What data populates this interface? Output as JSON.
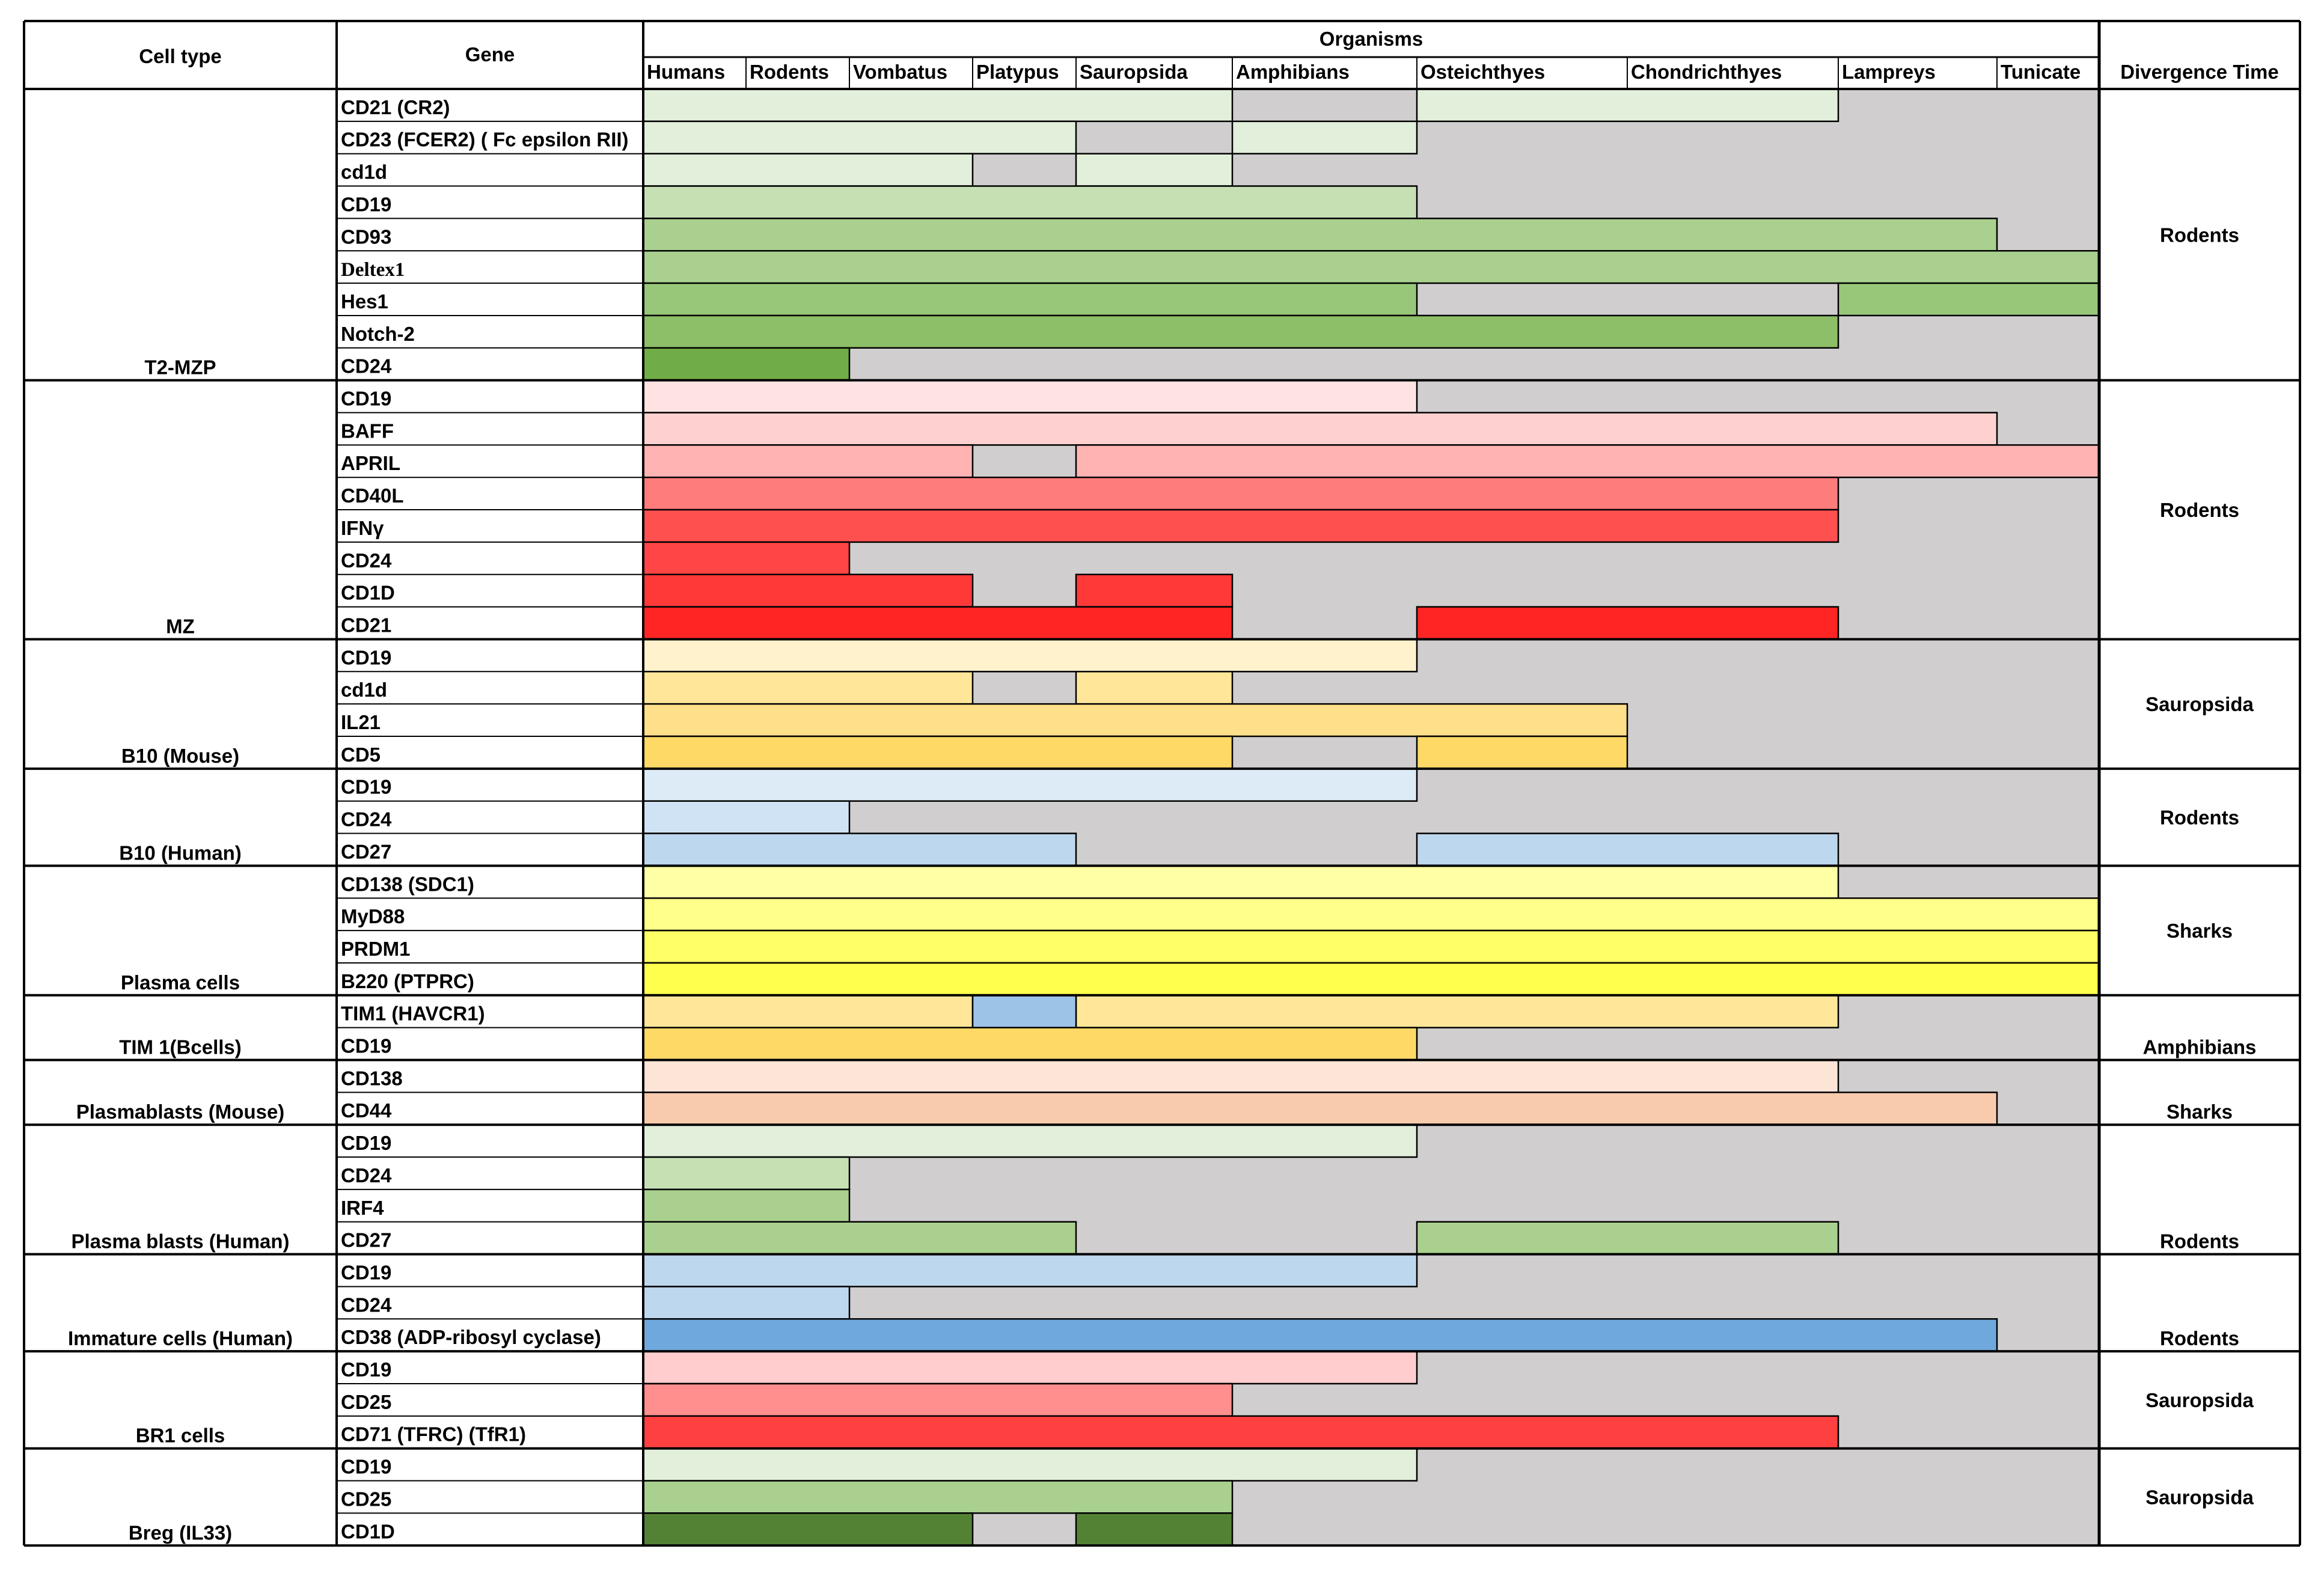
{
  "chart_data": {
    "type": "table",
    "headers": {
      "cell_type": "Cell type",
      "gene": "Gene",
      "organisms": "Organisms",
      "divergence": "Divergence Time"
    },
    "organisms": [
      "Humans",
      "Rodents",
      "Vombatus",
      "Platypus",
      "Sauropsida",
      "Amphibians",
      "Osteichthyes",
      "Chondrichthyes",
      "Lampreys",
      "Tunicate"
    ],
    "absent_color": "#d0cece",
    "groups": [
      {
        "cell_type": "T2-MZP",
        "divergence": "Rodents",
        "rows": [
          {
            "gene": "CD21 (CR2)",
            "color": "#e2efda",
            "segments": [
              [
                0,
                5
              ],
              [
                6,
                8
              ]
            ]
          },
          {
            "gene": "CD23 (FCER2) ( Fc epsilon RII)",
            "color": "#e2efda",
            "segments": [
              [
                0,
                4
              ],
              [
                5,
                6
              ]
            ]
          },
          {
            "gene": "cd1d",
            "color": "#e2efda",
            "segments": [
              [
                0,
                3
              ],
              [
                4,
                5
              ]
            ]
          },
          {
            "gene": "CD19",
            "color": "#c6e0b4",
            "segments": [
              [
                0,
                6
              ]
            ]
          },
          {
            "gene": "CD93",
            "color": "#a9d08e",
            "segments": [
              [
                0,
                9
              ]
            ]
          },
          {
            "gene": "Deltex1",
            "color": "#a9d08e",
            "segments": [
              [
                0,
                10
              ]
            ],
            "serif": true
          },
          {
            "gene": "Hes1",
            "color": "#98c77a",
            "segments": [
              [
                0,
                6
              ],
              [
                8,
                10
              ]
            ]
          },
          {
            "gene": "Notch-2",
            "color": "#8cbf67",
            "segments": [
              [
                0,
                8
              ]
            ]
          },
          {
            "gene": "CD24",
            "color": "#70ad47",
            "segments": [
              [
                0,
                2
              ]
            ]
          }
        ]
      },
      {
        "cell_type": "MZ",
        "divergence": "Rodents",
        "rows": [
          {
            "gene": "CD19",
            "color": "#ffe3e3",
            "segments": [
              [
                0,
                6
              ]
            ]
          },
          {
            "gene": "BAFF",
            "color": "#ffd0d0",
            "segments": [
              [
                0,
                9
              ]
            ]
          },
          {
            "gene": "APRIL",
            "color": "#ffb3b3",
            "segments": [
              [
                0,
                3
              ],
              [
                4,
                10
              ]
            ]
          },
          {
            "gene": "CD40L",
            "color": "#ff7c7c",
            "segments": [
              [
                0,
                8
              ]
            ]
          },
          {
            "gene": "IFNγ",
            "color": "#ff5050",
            "segments": [
              [
                0,
                8
              ]
            ]
          },
          {
            "gene": "CD24",
            "color": "#ff4545",
            "segments": [
              [
                0,
                2
              ]
            ]
          },
          {
            "gene": "CD1D",
            "color": "#ff3838",
            "segments": [
              [
                0,
                3
              ],
              [
                4,
                5
              ]
            ]
          },
          {
            "gene": "CD21",
            "color": "#ff2525",
            "segments": [
              [
                0,
                5
              ],
              [
                6,
                8
              ]
            ]
          }
        ]
      },
      {
        "cell_type": "B10 (Mouse)",
        "divergence": "Sauropsida",
        "rows": [
          {
            "gene": "CD19",
            "color": "#fff2cc",
            "segments": [
              [
                0,
                6
              ]
            ]
          },
          {
            "gene": "cd1d",
            "color": "#ffe699",
            "segments": [
              [
                0,
                3
              ],
              [
                4,
                5
              ]
            ]
          },
          {
            "gene": "IL21",
            "color": "#ffe08a",
            "segments": [
              [
                0,
                7
              ]
            ]
          },
          {
            "gene": "CD5",
            "color": "#ffd966",
            "segments": [
              [
                0,
                5
              ],
              [
                6,
                7
              ]
            ]
          }
        ]
      },
      {
        "cell_type": "B10 (Human)",
        "divergence": "Rodents",
        "rows": [
          {
            "gene": "CD19",
            "color": "#ddebf7",
            "segments": [
              [
                0,
                6
              ]
            ]
          },
          {
            "gene": "CD24",
            "color": "#cfe3f5",
            "segments": [
              [
                0,
                2
              ]
            ]
          },
          {
            "gene": "CD27",
            "color": "#bdd7ee",
            "segments": [
              [
                0,
                4
              ],
              [
                6,
                8
              ]
            ]
          }
        ]
      },
      {
        "cell_type": "Plasma cells",
        "divergence": "Sharks",
        "rows": [
          {
            "gene": "CD138 (SDC1)",
            "color": "#ffffa5",
            "segments": [
              [
                0,
                8
              ]
            ]
          },
          {
            "gene": "MyD88",
            "color": "#ffff8a",
            "segments": [
              [
                0,
                10
              ]
            ]
          },
          {
            "gene": "PRDM1",
            "color": "#ffff66",
            "segments": [
              [
                0,
                10
              ]
            ]
          },
          {
            "gene": "B220 (PTPRC)",
            "color": "#ffff4d",
            "segments": [
              [
                0,
                10
              ]
            ]
          }
        ]
      },
      {
        "cell_type": "TIM 1(Bcells)",
        "divergence": "Amphibians",
        "rows": [
          {
            "gene": "TIM1 (HAVCR1)",
            "color": "#ffe699",
            "segments": [
              [
                0,
                3
              ],
              [
                4,
                8
              ]
            ],
            "highlight": {
              "col": 3,
              "color": "#9dc3e6"
            }
          },
          {
            "gene": "CD19",
            "color": "#ffd966",
            "segments": [
              [
                0,
                6
              ]
            ]
          }
        ]
      },
      {
        "cell_type": "Plasmablasts (Mouse)",
        "divergence": "Sharks",
        "rows": [
          {
            "gene": "CD138",
            "color": "#fce4d6",
            "segments": [
              [
                0,
                8
              ]
            ]
          },
          {
            "gene": "CD44",
            "color": "#f8cbad",
            "segments": [
              [
                0,
                9
              ]
            ]
          }
        ]
      },
      {
        "cell_type": "Plasma blasts (Human)",
        "divergence": "Rodents",
        "rows": [
          {
            "gene": "CD19",
            "color": "#e2efda",
            "segments": [
              [
                0,
                6
              ]
            ]
          },
          {
            "gene": "CD24",
            "color": "#c6e0b4",
            "segments": [
              [
                0,
                2
              ]
            ]
          },
          {
            "gene": "IRF4",
            "color": "#a9d08e",
            "segments": [
              [
                0,
                2
              ]
            ]
          },
          {
            "gene": "CD27",
            "color": "#a9d08e",
            "segments": [
              [
                0,
                4
              ],
              [
                6,
                8
              ]
            ]
          }
        ]
      },
      {
        "cell_type": "Immature cells (Human)",
        "divergence": "Rodents",
        "rows": [
          {
            "gene": "CD19",
            "color": "#bdd7ee",
            "segments": [
              [
                0,
                6
              ]
            ]
          },
          {
            "gene": "CD24",
            "color": "#bdd7ee",
            "segments": [
              [
                0,
                2
              ]
            ]
          },
          {
            "gene": "CD38 (ADP-ribosyl cyclase)",
            "color": "#6fa8dc",
            "segments": [
              [
                0,
                9
              ]
            ]
          }
        ]
      },
      {
        "cell_type": "BR1 cells",
        "divergence": "Sauropsida",
        "rows": [
          {
            "gene": "CD19",
            "color": "#ffcdcd",
            "segments": [
              [
                0,
                6
              ]
            ]
          },
          {
            "gene": "CD25",
            "color": "#ff8f8f",
            "segments": [
              [
                0,
                5
              ]
            ]
          },
          {
            "gene": "CD71 (TFRC) (TfR1)",
            "color": "#ff4040",
            "segments": [
              [
                0,
                8
              ]
            ]
          }
        ]
      },
      {
        "cell_type": "Breg (IL33)",
        "divergence": "Sauropsida",
        "rows": [
          {
            "gene": "CD19",
            "color": "#e2efda",
            "segments": [
              [
                0,
                6
              ]
            ]
          },
          {
            "gene": "CD25",
            "color": "#a9d08e",
            "segments": [
              [
                0,
                5
              ]
            ]
          },
          {
            "gene": "CD1D",
            "color": "#548235",
            "segments": [
              [
                0,
                3
              ],
              [
                4,
                5
              ]
            ]
          }
        ]
      }
    ]
  }
}
